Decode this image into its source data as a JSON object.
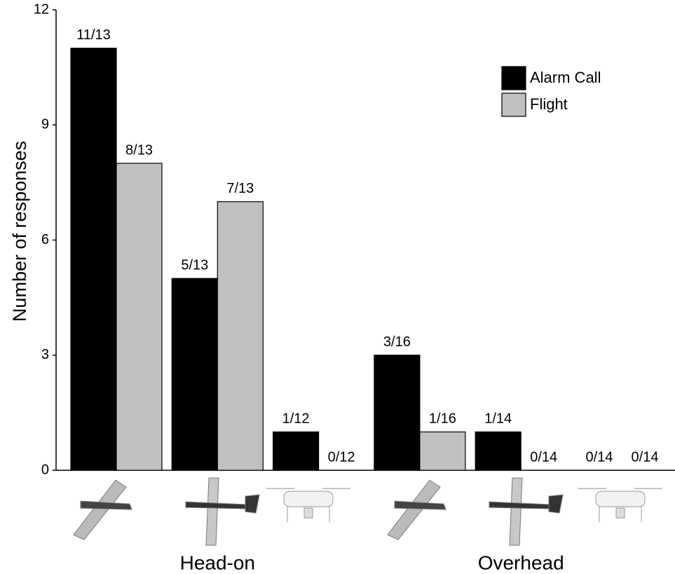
{
  "chart_data": {
    "type": "bar",
    "ylabel": "Number of responses",
    "categories": [
      null,
      null,
      null,
      null,
      null,
      null
    ],
    "group_labels": [
      "Head-on",
      "Overhead"
    ],
    "series": [
      {
        "name": "Alarm Call",
        "color": "#000000",
        "values": [
          11,
          5,
          1,
          3,
          1,
          0
        ],
        "value_labels": [
          "11/13",
          "5/13",
          "1/12",
          "3/16",
          "1/14",
          "0/14"
        ]
      },
      {
        "name": "Flight",
        "color": "#c0c0c0",
        "values": [
          8,
          7,
          0,
          1,
          0,
          0
        ],
        "value_labels": [
          "8/13",
          "7/13",
          "0/12",
          "1/16",
          "0/14",
          "0/14"
        ]
      }
    ],
    "ylim": [
      0,
      12
    ],
    "yticks": [
      0,
      3,
      6,
      9,
      12
    ],
    "legend": "upper right",
    "grid": false
  }
}
